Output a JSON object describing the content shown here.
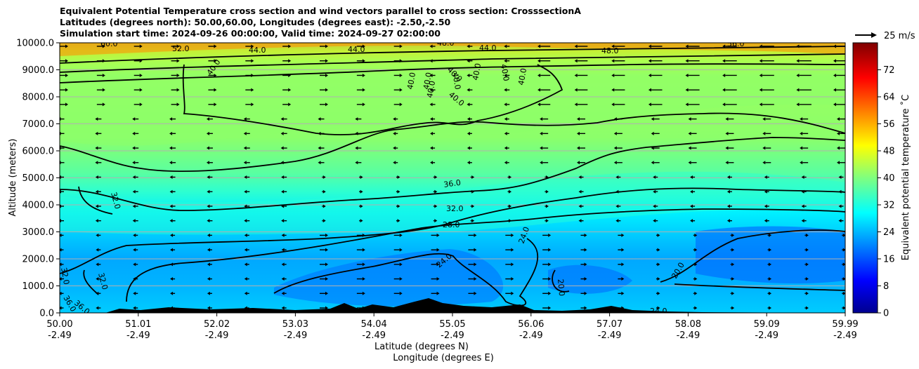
{
  "titles": {
    "line1": "Equivalent Potential Temperature cross section and wind vectors parallel to cross section: CrosssectionA",
    "line2": "Latitudes (degrees north): 50.00,60.00, Longitudes (degrees east): -2.50,-2.50",
    "line3": "Simulation start time: 2024-09-26 00:00:00, Valid time: 2024-09-27 02:00:00"
  },
  "chart_data": {
    "type": "heatmap",
    "title": "Equivalent Potential Temperature cross section and wind vectors parallel to cross section: CrosssectionA",
    "ylabel": "Altitude (meters)",
    "xlabel_lat": "Latitude (degrees N)",
    "xlabel_lon": "Longitude (degrees E)",
    "ylim": [
      0,
      10000
    ],
    "y_ticks": [
      "0.0",
      "1000.0",
      "2000.0",
      "3000.0",
      "4000.0",
      "5000.0",
      "6000.0",
      "7000.0",
      "8000.0",
      "9000.0",
      "10000.0"
    ],
    "x_ticks_lat": [
      "50.00",
      "51.01",
      "52.02",
      "53.03",
      "54.04",
      "55.05",
      "56.06",
      "57.07",
      "58.08",
      "59.09",
      "59.99"
    ],
    "x_ticks_lon": [
      "-2.49",
      "-2.49",
      "-2.49",
      "-2.49",
      "-2.49",
      "-2.49",
      "-2.49",
      "-2.49",
      "-2.49",
      "-2.49",
      "-2.49"
    ],
    "grid": "horizontal",
    "colorbar": {
      "label": "Equivalent potential temperature ˚C",
      "range": [
        0,
        80
      ],
      "ticks": [
        "0",
        "8",
        "16",
        "24",
        "32",
        "40",
        "48",
        "56",
        "64",
        "72"
      ],
      "colormap": "jet"
    },
    "quiver_key": "25 m/s",
    "contour_levels": [
      "20.0",
      "24.0",
      "28.0",
      "32.0",
      "36.0",
      "40.0",
      "44.0",
      "48.0",
      "52.0"
    ],
    "layers": [
      {
        "altitude": 0,
        "theta_e": 26
      },
      {
        "altitude": 1000,
        "theta_e": 24
      },
      {
        "altitude": 2000,
        "theta_e": 26
      },
      {
        "altitude": 3000,
        "theta_e": 29
      },
      {
        "altitude": 4000,
        "theta_e": 33
      },
      {
        "altitude": 5000,
        "theta_e": 36
      },
      {
        "altitude": 6000,
        "theta_e": 38
      },
      {
        "altitude": 7000,
        "theta_e": 40
      },
      {
        "altitude": 8000,
        "theta_e": 41
      },
      {
        "altitude": 9000,
        "theta_e": 44
      },
      {
        "altitude": 10000,
        "theta_e": 52
      }
    ]
  }
}
